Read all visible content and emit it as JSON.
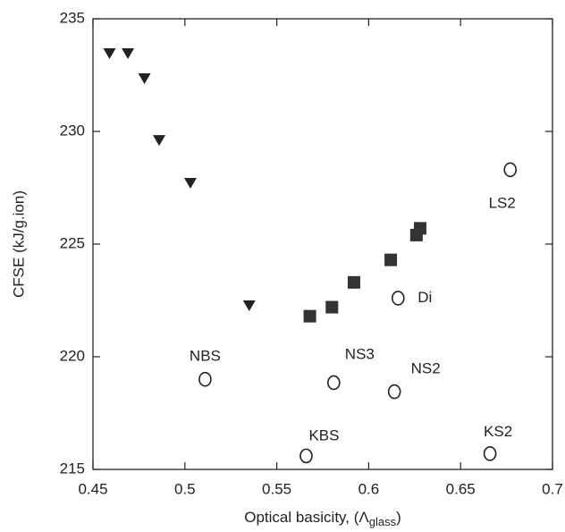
{
  "chart_data": {
    "type": "scatter",
    "x_label": {
      "text": "Optical basicity, (Λ",
      "subscript": "glass",
      "suffix": ")"
    },
    "y_label": "CFSE (kJ/g.ion)",
    "xlim": [
      0.45,
      0.7
    ],
    "xticks": [
      0.45,
      0.5,
      0.55,
      0.6,
      0.65,
      0.7
    ],
    "ylim": [
      215,
      235
    ],
    "yticks": [
      215,
      220,
      225,
      230,
      235
    ],
    "series": [
      {
        "marker": "triangle-down",
        "color": "#222222",
        "x": [
          0.459,
          0.469,
          0.478,
          0.486,
          0.503,
          0.535
        ],
        "values": [
          233.45,
          233.45,
          232.34,
          229.6,
          227.7,
          222.26
        ]
      },
      {
        "marker": "square",
        "color": "#333333",
        "x": [
          0.568,
          0.58,
          0.592,
          0.612,
          0.626,
          0.628
        ],
        "values": [
          221.8,
          222.2,
          223.3,
          224.3,
          225.4,
          225.7
        ]
      },
      {
        "marker": "open-circle",
        "color": "#222222",
        "labels": [
          "NBS",
          "NS3",
          "NS2",
          "KBS",
          "KS2",
          "Di",
          "LS2"
        ],
        "x": [
          0.511,
          0.581,
          0.614,
          0.566,
          0.666,
          0.616,
          0.677
        ],
        "values": [
          219.0,
          218.85,
          218.45,
          215.6,
          215.7,
          222.6,
          228.3
        ]
      }
    ]
  }
}
